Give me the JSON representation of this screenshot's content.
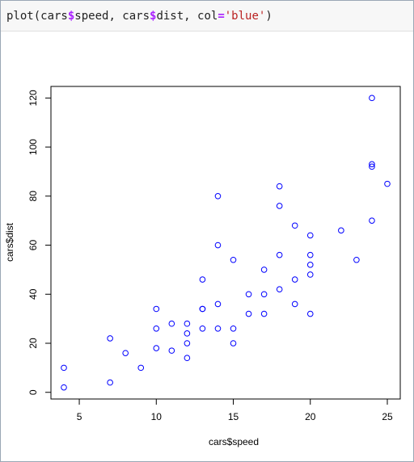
{
  "code": [
    "plot(cars",
    "$",
    "speed, cars",
    "$",
    "dist, col",
    "=",
    "'blue'",
    ")"
  ],
  "chart_data": {
    "type": "scatter",
    "xlabel": "cars$speed",
    "ylabel": "cars$dist",
    "color": "blue",
    "x": [
      4,
      4,
      7,
      7,
      8,
      9,
      10,
      10,
      10,
      11,
      11,
      12,
      12,
      12,
      12,
      13,
      13,
      13,
      13,
      14,
      14,
      14,
      14,
      15,
      15,
      15,
      16,
      16,
      17,
      17,
      17,
      18,
      18,
      18,
      18,
      19,
      19,
      19,
      20,
      20,
      20,
      20,
      20,
      22,
      23,
      24,
      24,
      24,
      24,
      25
    ],
    "values": [
      2,
      10,
      4,
      22,
      16,
      10,
      18,
      26,
      34,
      17,
      28,
      14,
      20,
      24,
      28,
      26,
      34,
      34,
      46,
      26,
      36,
      60,
      80,
      20,
      26,
      54,
      32,
      40,
      32,
      40,
      50,
      42,
      56,
      76,
      84,
      36,
      46,
      68,
      32,
      48,
      52,
      56,
      64,
      66,
      54,
      70,
      92,
      93,
      120,
      85
    ],
    "xlim": [
      3.16,
      25.84
    ],
    "ylim": [
      -2.72,
      124.72
    ],
    "xticks": [
      5,
      10,
      15,
      20,
      25
    ],
    "yticks": [
      0,
      20,
      40,
      60,
      80,
      100,
      120
    ]
  }
}
